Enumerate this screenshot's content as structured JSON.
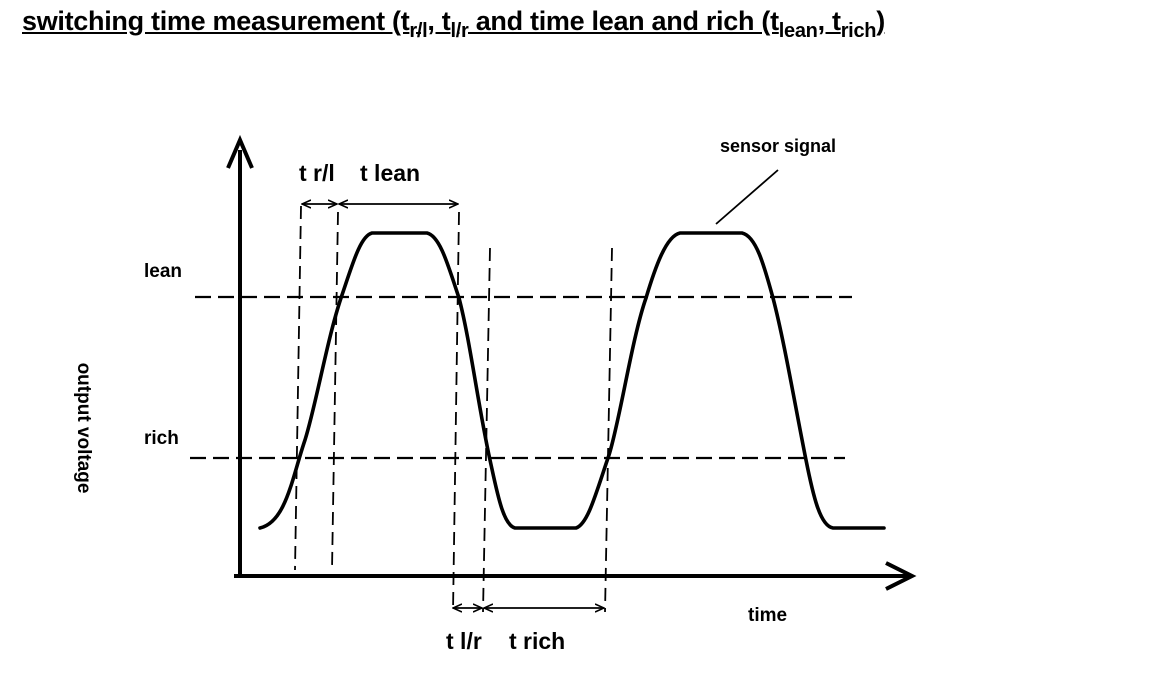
{
  "title": {
    "prefix": "switching time measurement (t",
    "sub1": "r/l",
    "sep1": ", t",
    "sub2": "l/r",
    "mid": " and time lean and rich (t",
    "sub3": "lean",
    "sep2": ", t",
    "sub4": "rich",
    "suffix": ")"
  },
  "diagram": {
    "y_axis_label": "output voltage",
    "x_axis_label": "time",
    "level_lean": "lean",
    "level_rich": "rich",
    "signal_label": "sensor signal",
    "span_t_rl": "t r/l",
    "span_t_lean": "t lean",
    "span_t_lr": "t l/r",
    "span_t_rich": "t rich"
  }
}
